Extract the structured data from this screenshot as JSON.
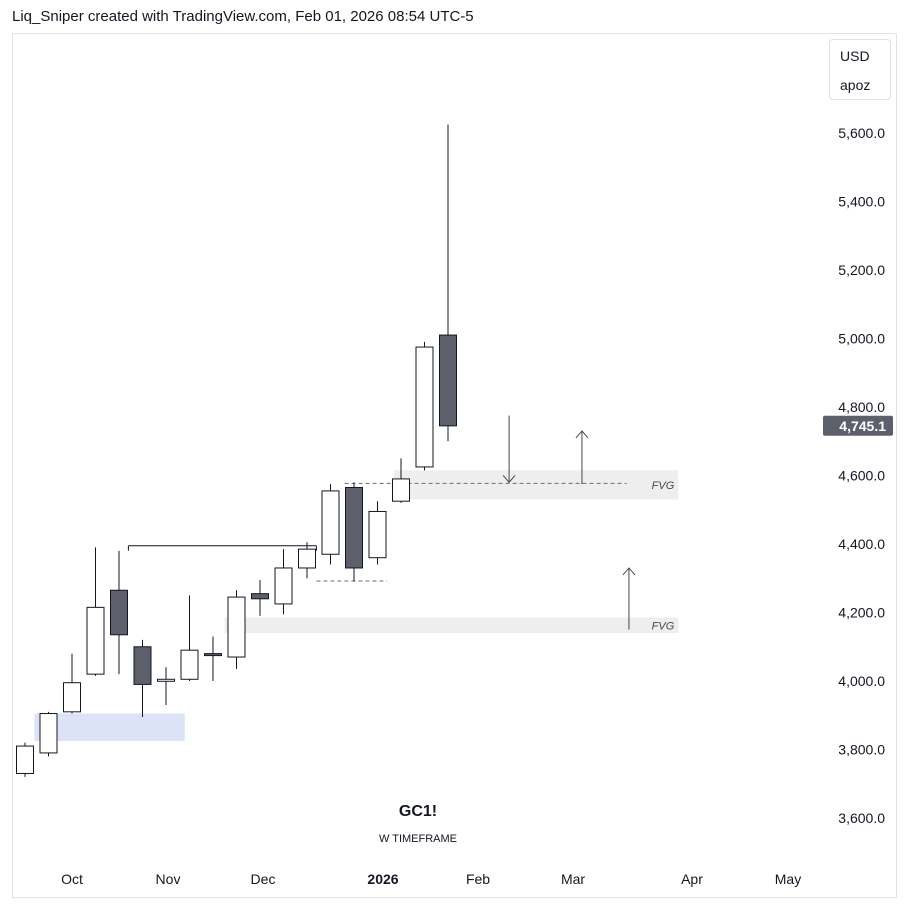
{
  "header": {
    "text": "Liq_Sniper created with TradingView.com, Feb 01, 2026 08:54 UTC-5"
  },
  "unit_box": {
    "currency": "USD",
    "label": "apoz"
  },
  "watermark": {
    "symbol": "GC1!",
    "timeframe": "W TIMEFRAME"
  },
  "colors": {
    "bear": "#5d606b",
    "bull": "#ffffff",
    "outline": "#131722",
    "fvg": "#eeeeee",
    "ob": "#dde3f7",
    "tag": "#5d606b"
  },
  "chart_data": {
    "type": "candlestick",
    "yaxis": {
      "ticks": [
        3600,
        3800,
        4000,
        4200,
        4400,
        4600,
        4800,
        5000,
        5200,
        5400,
        5600
      ],
      "tick_labels": [
        "3,600.0",
        "3,800.0",
        "4,000.0",
        "4,200.0",
        "4,400.0",
        "4,600.0",
        "4,800.0",
        "5,000.0",
        "5,200.0",
        "5,400.0",
        "5,600.0"
      ],
      "range": [
        3500,
        5730
      ]
    },
    "xaxis": {
      "labels": [
        "Oct",
        "Nov",
        "Dec",
        "2026",
        "Feb",
        "Mar",
        "Apr",
        "May"
      ],
      "bold": [
        "2026"
      ]
    },
    "last_price": {
      "value": 4745.1,
      "label": "4,745.1"
    },
    "candles": [
      {
        "week": 0,
        "o": 3730,
        "h": 3820,
        "l": 3720,
        "c": 3810
      },
      {
        "week": 1,
        "o": 3790,
        "h": 3910,
        "l": 3780,
        "c": 3905
      },
      {
        "week": 2,
        "o": 3910,
        "h": 4080,
        "l": 3905,
        "c": 3995
      },
      {
        "week": 3,
        "o": 4020,
        "h": 4390,
        "l": 4015,
        "c": 4215
      },
      {
        "week": 4,
        "o": 4265,
        "h": 4380,
        "l": 4020,
        "c": 4135
      },
      {
        "week": 5,
        "o": 4100,
        "h": 4120,
        "l": 3895,
        "c": 3990
      },
      {
        "week": 6,
        "o": 4000,
        "h": 4040,
        "l": 3930,
        "c": 4005
      },
      {
        "week": 7,
        "o": 4005,
        "h": 4250,
        "l": 4000,
        "c": 4090
      },
      {
        "week": 8,
        "o": 4080,
        "h": 4130,
        "l": 4000,
        "c": 4075
      },
      {
        "week": 9,
        "o": 4070,
        "h": 4265,
        "l": 4035,
        "c": 4245
      },
      {
        "week": 10,
        "o": 4255,
        "h": 4295,
        "l": 4190,
        "c": 4240
      },
      {
        "week": 11,
        "o": 4225,
        "h": 4385,
        "l": 4195,
        "c": 4330
      },
      {
        "week": 12,
        "o": 4330,
        "h": 4405,
        "l": 4300,
        "c": 4385
      },
      {
        "week": 13,
        "o": 4370,
        "h": 4575,
        "l": 4340,
        "c": 4555
      },
      {
        "week": 14,
        "o": 4565,
        "h": 4580,
        "l": 4290,
        "c": 4330
      },
      {
        "week": 15,
        "o": 4360,
        "h": 4525,
        "l": 4340,
        "c": 4495
      },
      {
        "week": 16,
        "o": 4525,
        "h": 4650,
        "l": 4520,
        "c": 4590
      },
      {
        "week": 17,
        "o": 4625,
        "h": 4990,
        "l": 4615,
        "c": 4975
      },
      {
        "week": 18,
        "o": 5010,
        "h": 5625,
        "l": 4700,
        "c": 4745
      }
    ],
    "zones": [
      {
        "type": "fvg",
        "label": "FVG",
        "from_week": 15.7,
        "to_week": 27.8,
        "low": 4530,
        "high": 4615
      },
      {
        "type": "fvg",
        "label": "FVG",
        "from_week": 8.5,
        "to_week": 27.8,
        "low": 4140,
        "high": 4185
      },
      {
        "type": "order_block",
        "label": "",
        "from_week": 0.4,
        "to_week": 6.8,
        "low": 3825,
        "high": 3905
      }
    ],
    "lines": [
      {
        "style": "solid",
        "from_week": 4.4,
        "to_week": 12.4,
        "price": 4395
      },
      {
        "style": "dashed",
        "from_week": 12.4,
        "to_week": 15.4,
        "price": 4292
      },
      {
        "style": "dashed",
        "from_week": 13.6,
        "to_week": 25.6,
        "price": 4577
      }
    ],
    "arrows": [
      {
        "direction": "down",
        "week": 20.6,
        "from": 4775,
        "to": 4580
      },
      {
        "direction": "up",
        "week": 23.7,
        "from": 4575,
        "to": 4730
      },
      {
        "direction": "up",
        "week": 25.7,
        "from": 4150,
        "to": 4330
      }
    ]
  }
}
